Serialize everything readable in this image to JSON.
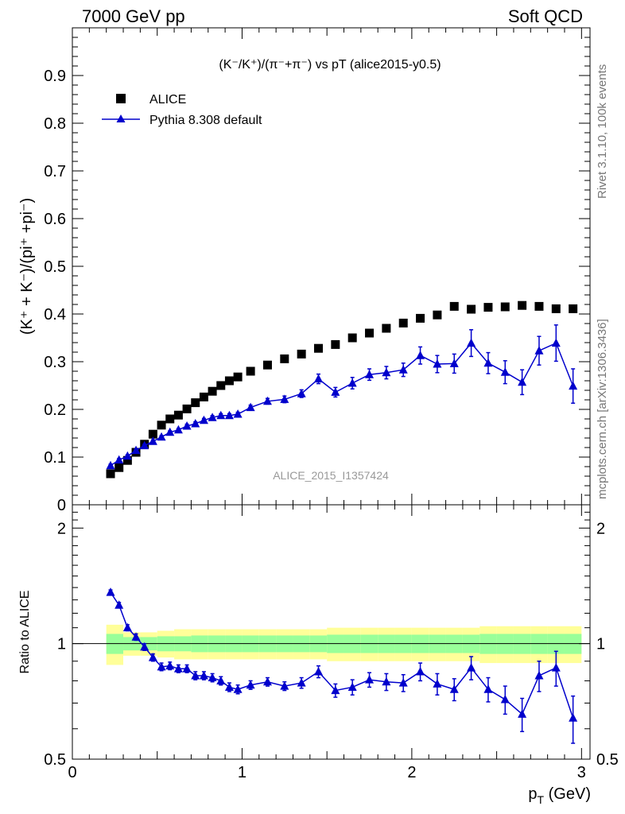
{
  "header": {
    "left": "7000 GeV pp",
    "right": "Soft QCD"
  },
  "side_labels": {
    "rivet": "Rivet 3.1.10,  100k events",
    "mcplots": "mcplots.cern.ch [arXiv:1306.3436]"
  },
  "watermark": "ALICE_2015_I1357424",
  "colors": {
    "alice": "#000000",
    "pythia": "#0000cc",
    "band_outer": "#ffff99",
    "band_inner": "#99ff99"
  },
  "chart_data": [
    {
      "type": "scatter",
      "title": "(K⁻/K⁺)/(π⁻+π⁻) vs pT (alice2015-y0.5)",
      "ylabel": "(K⁺ + K⁻)/(pi⁺ +pi⁻)",
      "xlim": [
        0,
        3.05
      ],
      "ylim": [
        0,
        1.0
      ],
      "yticks": [
        0,
        0.1,
        0.2,
        0.3,
        0.4,
        0.5,
        0.6,
        0.7,
        0.8,
        0.9
      ],
      "legend_position": "top-left",
      "series": [
        {
          "name": "ALICE",
          "marker": "square",
          "x": [
            0.225,
            0.275,
            0.325,
            0.375,
            0.425,
            0.475,
            0.525,
            0.575,
            0.625,
            0.675,
            0.725,
            0.775,
            0.825,
            0.875,
            0.925,
            0.975,
            1.05,
            1.15,
            1.25,
            1.35,
            1.45,
            1.55,
            1.65,
            1.75,
            1.85,
            1.95,
            2.05,
            2.15,
            2.25,
            2.35,
            2.45,
            2.55,
            2.65,
            2.75,
            2.85,
            2.95
          ],
          "y": [
            0.065,
            0.078,
            0.093,
            0.11,
            0.127,
            0.148,
            0.167,
            0.18,
            0.188,
            0.201,
            0.214,
            0.226,
            0.238,
            0.25,
            0.26,
            0.268,
            0.28,
            0.293,
            0.306,
            0.316,
            0.328,
            0.336,
            0.35,
            0.36,
            0.37,
            0.381,
            0.391,
            0.398,
            0.416,
            0.41,
            0.414,
            0.415,
            0.418,
            0.416,
            0.411,
            0.411
          ]
        },
        {
          "name": "Pythia 8.308 default",
          "marker": "triangle",
          "x": [
            0.225,
            0.275,
            0.325,
            0.375,
            0.425,
            0.475,
            0.525,
            0.575,
            0.625,
            0.675,
            0.725,
            0.775,
            0.825,
            0.875,
            0.925,
            0.975,
            1.05,
            1.15,
            1.25,
            1.35,
            1.45,
            1.55,
            1.65,
            1.75,
            1.85,
            1.95,
            2.05,
            2.15,
            2.25,
            2.35,
            2.45,
            2.55,
            2.65,
            2.75,
            2.85,
            2.95
          ],
          "y": [
            0.082,
            0.094,
            0.102,
            0.114,
            0.124,
            0.133,
            0.142,
            0.152,
            0.157,
            0.165,
            0.17,
            0.177,
            0.183,
            0.187,
            0.187,
            0.19,
            0.204,
            0.217,
            0.221,
            0.233,
            0.264,
            0.236,
            0.255,
            0.273,
            0.277,
            0.283,
            0.313,
            0.295,
            0.296,
            0.339,
            0.297,
            0.278,
            0.257,
            0.323,
            0.339,
            0.249
          ],
          "err": [
            0.003,
            0.003,
            0.003,
            0.003,
            0.003,
            0.003,
            0.003,
            0.003,
            0.003,
            0.004,
            0.004,
            0.004,
            0.004,
            0.004,
            0.004,
            0.004,
            0.005,
            0.006,
            0.007,
            0.008,
            0.01,
            0.01,
            0.012,
            0.012,
            0.013,
            0.014,
            0.018,
            0.018,
            0.02,
            0.028,
            0.022,
            0.024,
            0.026,
            0.03,
            0.038,
            0.036
          ]
        }
      ]
    },
    {
      "type": "line",
      "ylabel": "Ratio to ALICE",
      "xlabel": "p_T (GeV)",
      "xlim": [
        0,
        3.05
      ],
      "ylim": [
        0.5,
        2.3
      ],
      "yticks": [
        0.5,
        1,
        2
      ],
      "xticks": [
        0,
        1,
        2,
        3
      ],
      "band_edges": [
        0.2,
        0.3,
        0.4,
        0.5,
        0.6,
        0.7,
        0.8,
        0.9,
        1.0,
        1.1,
        1.2,
        1.3,
        1.4,
        1.5,
        1.6,
        1.7,
        1.8,
        1.9,
        2.0,
        2.1,
        2.2,
        2.3,
        2.4,
        2.5,
        2.6,
        2.7,
        2.8,
        2.9,
        3.0
      ],
      "band_inner": [
        0.06,
        0.04,
        0.04,
        0.045,
        0.045,
        0.05,
        0.05,
        0.05,
        0.05,
        0.05,
        0.05,
        0.05,
        0.05,
        0.055,
        0.055,
        0.055,
        0.055,
        0.055,
        0.055,
        0.055,
        0.055,
        0.055,
        0.06,
        0.06,
        0.06,
        0.06,
        0.06,
        0.06
      ],
      "band_outer": [
        0.12,
        0.07,
        0.07,
        0.08,
        0.09,
        0.09,
        0.09,
        0.09,
        0.09,
        0.09,
        0.09,
        0.09,
        0.09,
        0.1,
        0.1,
        0.1,
        0.1,
        0.1,
        0.1,
        0.1,
        0.1,
        0.1,
        0.11,
        0.11,
        0.11,
        0.11,
        0.11,
        0.11
      ],
      "series": [
        {
          "name": "Pythia 8.308 default",
          "x": [
            0.225,
            0.275,
            0.325,
            0.375,
            0.425,
            0.475,
            0.525,
            0.575,
            0.625,
            0.675,
            0.725,
            0.775,
            0.825,
            0.875,
            0.925,
            0.975,
            1.05,
            1.15,
            1.25,
            1.35,
            1.45,
            1.55,
            1.65,
            1.75,
            1.85,
            1.95,
            2.05,
            2.15,
            2.25,
            2.35,
            2.45,
            2.55,
            2.65,
            2.75,
            2.85,
            2.95
          ],
          "y": [
            1.36,
            1.26,
            1.1,
            1.04,
            0.98,
            0.92,
            0.87,
            0.875,
            0.86,
            0.86,
            0.825,
            0.825,
            0.815,
            0.8,
            0.77,
            0.76,
            0.78,
            0.795,
            0.775,
            0.79,
            0.845,
            0.755,
            0.77,
            0.805,
            0.795,
            0.79,
            0.845,
            0.785,
            0.76,
            0.865,
            0.76,
            0.715,
            0.655,
            0.825,
            0.865,
            0.64
          ],
          "err": [
            0.02,
            0.02,
            0.02,
            0.02,
            0.02,
            0.02,
            0.02,
            0.02,
            0.02,
            0.02,
            0.02,
            0.02,
            0.02,
            0.02,
            0.02,
            0.02,
            0.02,
            0.02,
            0.02,
            0.025,
            0.03,
            0.03,
            0.035,
            0.035,
            0.04,
            0.04,
            0.045,
            0.05,
            0.05,
            0.06,
            0.055,
            0.06,
            0.065,
            0.075,
            0.09,
            0.09
          ]
        }
      ]
    }
  ]
}
